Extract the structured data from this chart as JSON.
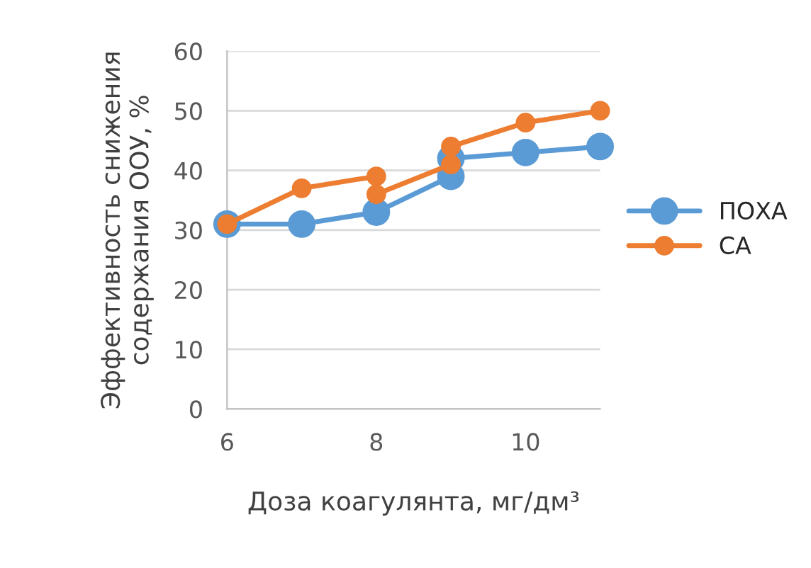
{
  "chart_data": {
    "type": "line",
    "xlabel": "Доза коагулянта, мг/дм³",
    "ylabel": "Эффективность снижения содержания ООУ, %",
    "series": [
      {
        "name": "ПОХА",
        "color": "#5b9bd5",
        "x": [
          6,
          7,
          8,
          9,
          9,
          10,
          11
        ],
        "values": [
          31,
          31,
          33,
          39,
          42,
          43,
          44
        ]
      },
      {
        "name": "СА",
        "color": "#ed7d31",
        "x": [
          6,
          7,
          8,
          8,
          9,
          9,
          10,
          11
        ],
        "values": [
          31,
          37,
          39,
          36,
          41,
          44,
          48,
          50
        ]
      }
    ],
    "xlim": [
      6,
      11
    ],
    "xticks": [
      6,
      8,
      10
    ],
    "ylim": [
      0,
      60
    ],
    "yticks": [
      0,
      10,
      20,
      30,
      40,
      50,
      60
    ],
    "grid": "y",
    "legend": "right",
    "marker": "circle",
    "line_style": "solid"
  }
}
